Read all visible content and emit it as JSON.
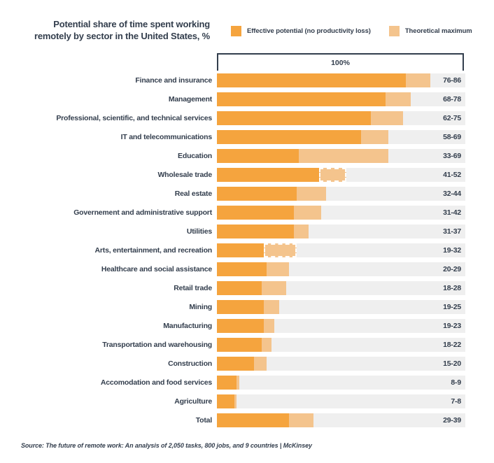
{
  "title": {
    "line1": "Potential share of time spent working",
    "line2": "remotely by sector in the United States, %"
  },
  "legend": [
    {
      "label": "Effective potential (no productivity loss)",
      "color": "#F5A43E"
    },
    {
      "label": "Theoretical maximum",
      "color": "#F4C48D"
    }
  ],
  "source": "Source: The future of remote work: An analysis of 2,050 tasks, 800 jobs, and 9 countries | McKinsey",
  "colors": {
    "effective": "#F5A43E",
    "theoretical": "#F4C48D",
    "track": "#EFEFEF",
    "text": "#333E4D",
    "background": "#FFFFFF"
  },
  "chart_data": {
    "type": "bar",
    "orientation": "horizontal",
    "title": "Potential share of time spent working remotely by sector in the United States, %",
    "xlim": [
      0,
      100
    ],
    "axis_top_label": "100%",
    "legend_position": "top-right",
    "grid": false,
    "categories": [
      "Finance and insurance",
      "Management",
      "Professional, scientific, and technical services",
      "IT and telecommunications",
      "Education",
      "Wholesale trade",
      "Real estate",
      "Governement and administrative support",
      "Utilities",
      "Arts, entertainment, and recreation",
      "Healthcare and social assistance",
      "Retail trade",
      "Mining",
      "Manufacturing",
      "Transportation and warehousing",
      "Construction",
      "Accomodation and food services",
      "Agriculture",
      "Total"
    ],
    "series": [
      {
        "name": "Effective potential (no productivity loss)",
        "color": "#F5A43E",
        "values": [
          76,
          68,
          62,
          58,
          33,
          41,
          32,
          31,
          31,
          19,
          20,
          18,
          19,
          19,
          18,
          15,
          8,
          7,
          29
        ]
      },
      {
        "name": "Theoretical maximum",
        "color": "#F4C48D",
        "values": [
          86,
          78,
          75,
          69,
          69,
          52,
          44,
          42,
          37,
          32,
          29,
          28,
          25,
          23,
          22,
          20,
          9,
          8,
          39
        ]
      }
    ],
    "value_labels": [
      "76-86",
      "68-78",
      "62-75",
      "58-69",
      "33-69",
      "41-52",
      "32-44",
      "31-42",
      "31-37",
      "19-32",
      "20-29",
      "18-28",
      "19-25",
      "19-23",
      "18-22",
      "15-20",
      "8-9",
      "7-8",
      "29-39"
    ],
    "dashed_segment_rows": [
      5,
      9
    ],
    "source": "Source: The future of remote work: An analysis of 2,050 tasks, 800 jobs, and 9 countries | McKinsey"
  }
}
